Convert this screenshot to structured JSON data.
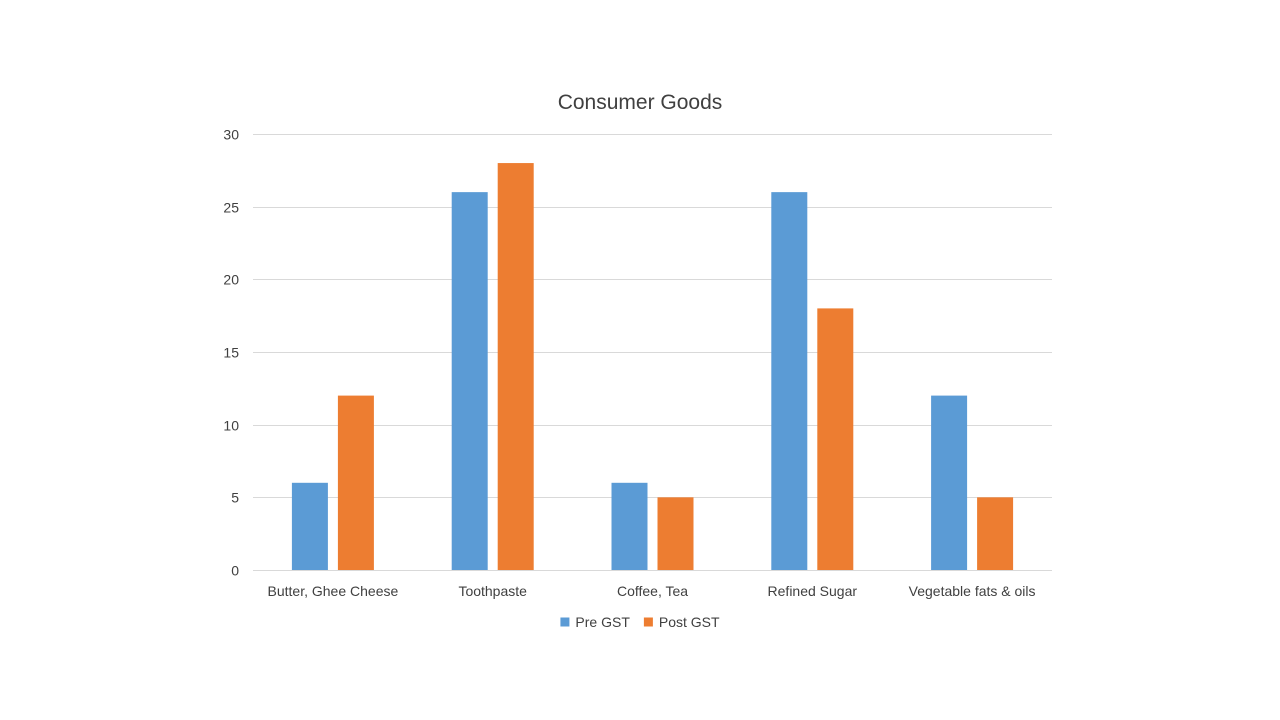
{
  "chart_data": {
    "type": "bar",
    "title": "Consumer Goods",
    "xlabel": "",
    "ylabel": "",
    "categories": [
      "Butter, Ghee Cheese",
      "Toothpaste",
      "Coffee, Tea",
      "Refined Sugar",
      "Vegetable fats & oils"
    ],
    "series": [
      {
        "name": "Pre GST",
        "color": "#5b9bd5",
        "values": [
          6,
          26,
          6,
          26,
          12
        ]
      },
      {
        "name": "Post GST",
        "color": "#ed7d31",
        "values": [
          12,
          28,
          5,
          18,
          5
        ]
      }
    ],
    "ylim": [
      0,
      30
    ],
    "yticks": [
      "0",
      "5",
      "10",
      "15",
      "20",
      "25",
      "30"
    ],
    "grid": true,
    "legend_position": "bottom"
  }
}
